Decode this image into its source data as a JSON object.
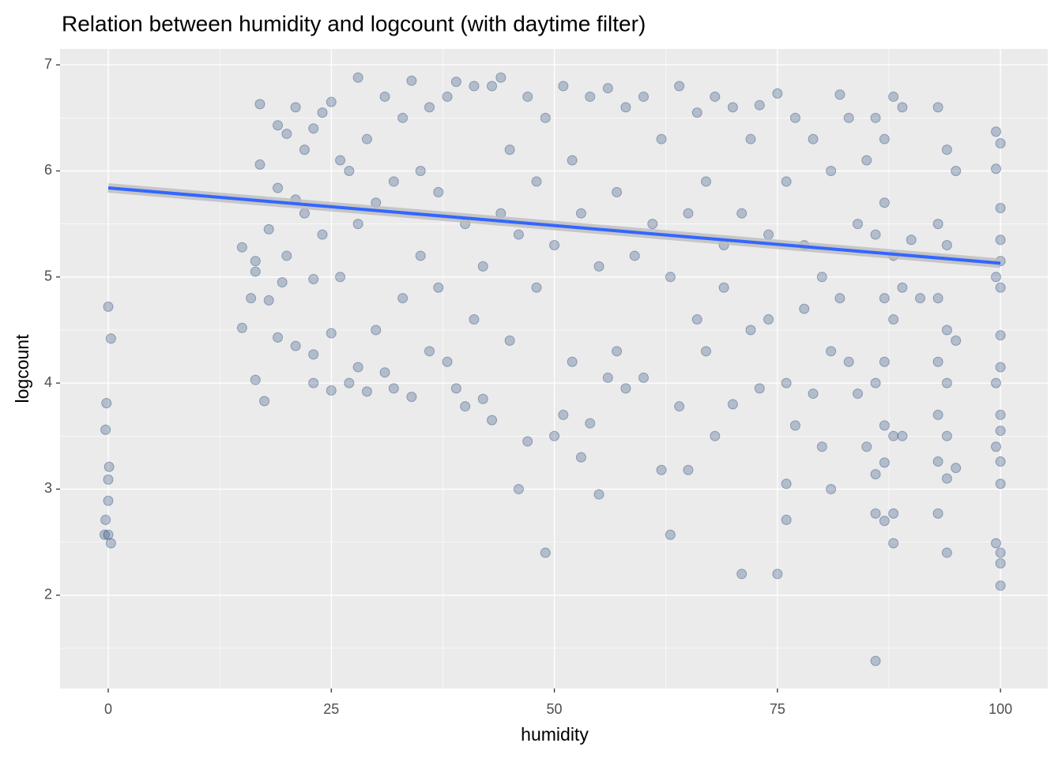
{
  "chart_data": {
    "type": "scatter",
    "title": "Relation between humidity and logcount (with daytime filter)",
    "x_label": "humidity",
    "y_label": "logcount",
    "xlim": [
      -5.4,
      105.3
    ],
    "ylim": [
      1.12,
      7.15
    ],
    "xticks": [
      0,
      25,
      50,
      75,
      100
    ],
    "yticks": [
      2,
      3,
      4,
      5,
      6,
      7
    ],
    "grid": true,
    "points": {
      "color": "#08306b",
      "x": [
        0,
        0.3,
        -0.2,
        -0.3,
        0.1,
        0,
        0,
        -0.3,
        -0.4,
        0,
        0.3,
        15,
        15,
        16,
        16.5,
        16.5,
        16.5,
        17,
        17,
        17.5,
        18,
        18,
        19,
        19,
        19,
        19.5,
        20,
        20,
        21,
        21,
        21,
        22,
        22,
        23,
        23,
        23,
        23,
        24,
        24,
        25,
        25,
        25,
        26,
        26,
        27,
        27,
        28,
        28,
        28,
        29,
        29,
        30,
        30,
        31,
        31,
        32,
        32,
        33,
        33,
        34,
        34,
        35,
        35,
        36,
        36,
        37,
        37,
        38,
        38,
        39,
        39,
        40,
        40,
        41,
        41,
        42,
        42,
        43,
        43,
        44,
        44,
        45,
        45,
        46,
        46,
        47,
        47,
        48,
        48,
        49,
        49,
        50,
        50,
        51,
        51,
        52,
        52,
        53,
        53,
        54,
        54,
        55,
        55,
        56,
        56,
        57,
        57,
        58,
        58,
        59,
        60,
        60,
        61,
        62,
        62,
        63,
        63,
        64,
        64,
        65,
        65,
        66,
        66,
        67,
        67,
        68,
        68,
        69,
        69,
        70,
        70,
        71,
        71,
        72,
        72,
        73,
        73,
        74,
        74,
        75,
        75,
        76,
        76,
        76,
        76,
        77,
        77,
        78,
        78,
        79,
        79,
        80,
        80,
        81,
        81,
        81,
        82,
        82,
        83,
        83,
        84,
        84,
        85,
        85,
        86,
        86,
        86,
        86,
        86,
        86,
        87,
        87,
        87,
        87,
        87,
        87,
        87,
        88,
        88,
        88,
        88,
        88,
        88,
        89,
        89,
        89,
        90,
        91,
        93,
        93,
        93,
        93,
        93,
        93,
        93,
        94,
        94,
        94,
        94,
        94,
        94,
        94,
        95,
        95,
        95,
        99.5,
        99.5,
        99.5,
        99.5,
        99.5,
        99.5,
        100,
        100,
        100,
        100,
        100,
        100,
        100,
        100,
        100,
        100,
        100,
        100,
        100,
        100
      ],
      "y": [
        4.72,
        4.42,
        3.81,
        3.56,
        3.21,
        3.09,
        2.89,
        2.71,
        2.57,
        2.57,
        2.49,
        5.28,
        4.52,
        4.8,
        5.15,
        5.05,
        4.03,
        6.63,
        6.06,
        3.83,
        5.45,
        4.78,
        6.43,
        5.84,
        4.43,
        4.95,
        6.35,
        5.2,
        6.6,
        4.35,
        5.73,
        5.6,
        6.2,
        6.4,
        4.98,
        4.0,
        4.27,
        6.55,
        5.4,
        6.65,
        4.47,
        3.93,
        6.1,
        5.0,
        6.0,
        4.0,
        6.88,
        4.15,
        5.5,
        3.92,
        6.3,
        5.7,
        4.5,
        6.7,
        4.1,
        5.9,
        3.95,
        6.5,
        4.8,
        6.85,
        3.87,
        6.0,
        5.2,
        6.6,
        4.3,
        5.8,
        4.9,
        6.7,
        4.2,
        3.95,
        6.84,
        5.5,
        3.78,
        6.8,
        4.6,
        5.1,
        3.85,
        6.8,
        3.65,
        6.88,
        5.6,
        4.4,
        6.2,
        3.0,
        5.4,
        3.45,
        6.7,
        4.9,
        5.9,
        2.4,
        6.5,
        3.5,
        5.3,
        6.8,
        3.7,
        4.2,
        6.1,
        3.3,
        5.6,
        6.7,
        3.62,
        2.95,
        5.1,
        6.78,
        4.05,
        5.8,
        4.3,
        6.6,
        3.95,
        5.2,
        6.7,
        4.05,
        5.5,
        3.18,
        6.3,
        2.57,
        5.0,
        3.78,
        6.8,
        3.18,
        5.6,
        4.6,
        6.55,
        4.3,
        5.9,
        3.5,
        6.7,
        4.9,
        5.3,
        3.8,
        6.6,
        2.2,
        5.6,
        4.5,
        6.3,
        3.95,
        6.62,
        4.6,
        5.4,
        2.2,
        6.73,
        3.05,
        2.71,
        4.0,
        5.9,
        3.6,
        6.5,
        4.7,
        5.3,
        3.9,
        6.3,
        3.4,
        5.0,
        3.0,
        4.3,
        6.0,
        6.72,
        4.8,
        4.2,
        6.5,
        3.9,
        5.5,
        3.4,
        6.1,
        1.38,
        2.77,
        3.14,
        4.0,
        5.4,
        6.5,
        2.7,
        3.25,
        3.6,
        4.2,
        4.8,
        5.7,
        6.3,
        2.49,
        2.77,
        3.5,
        4.6,
        5.2,
        6.7,
        3.5,
        4.9,
        6.6,
        5.35,
        4.8,
        2.77,
        3.26,
        3.7,
        4.2,
        4.8,
        5.5,
        6.6,
        2.4,
        3.1,
        3.5,
        4.0,
        4.5,
        5.3,
        6.2,
        3.2,
        4.4,
        6.0,
        2.49,
        3.4,
        4.0,
        5.0,
        6.02,
        6.37,
        2.09,
        2.3,
        2.4,
        3.05,
        3.26,
        3.55,
        3.7,
        4.15,
        4.45,
        4.9,
        5.15,
        5.35,
        5.65,
        6.26
      ]
    },
    "trend": {
      "type": "line",
      "color": "#3366ff",
      "band_color": "#bdbdbd",
      "x": [
        0,
        100
      ],
      "y": [
        5.84,
        5.13
      ]
    }
  }
}
